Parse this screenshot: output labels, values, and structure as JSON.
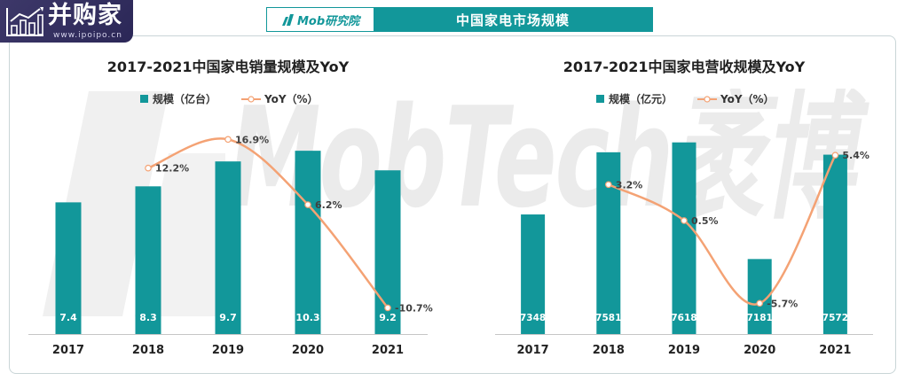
{
  "brand": {
    "name": "并购家",
    "url": "www.ipoipo.cn",
    "icon": "bar-chart-trend-icon"
  },
  "header": {
    "logo_text": "Mob研究院",
    "logo_icon": "mob-logo-icon",
    "title": "中国家电市场规模"
  },
  "watermark": {
    "text": "MobTech袤博"
  },
  "colors": {
    "bar": "#12979a",
    "line": "#f4a274",
    "header": "#12979a",
    "brand_bg": "#35305f"
  },
  "chart_data": [
    {
      "type": "bar",
      "title": "2017-2021中国家电销量规模及YoY",
      "categories": [
        "2017",
        "2018",
        "2019",
        "2020",
        "2021"
      ],
      "series": [
        {
          "name": "规模（亿台）",
          "type": "bar",
          "values": [
            7.4,
            8.3,
            9.7,
            10.3,
            9.2
          ]
        },
        {
          "name": "YoY（%）",
          "type": "line",
          "smooth": true,
          "secondary_axis": true,
          "x": [
            "2018",
            "2019",
            "2020",
            "2021"
          ],
          "values": [
            12.2,
            16.9,
            6.2,
            -10.7
          ],
          "data_labels": [
            "12.2%",
            "16.9%",
            "6.2%",
            "-10.7%"
          ]
        }
      ],
      "ylim": [
        0,
        12
      ],
      "y2lim": [
        -15,
        20
      ],
      "axes_visible": false,
      "grid": false,
      "legend": "top"
    },
    {
      "type": "bar",
      "title": "2017-2021中国家电营收规模及YoY",
      "categories": [
        "2017",
        "2018",
        "2019",
        "2020",
        "2021"
      ],
      "series": [
        {
          "name": "规模（亿元）",
          "type": "bar",
          "values": [
            7348,
            7581,
            7618,
            7181,
            7572
          ]
        },
        {
          "name": "YoY（%）",
          "type": "line",
          "smooth": true,
          "secondary_axis": true,
          "x": [
            "2018",
            "2019",
            "2020",
            "2021"
          ],
          "values": [
            3.2,
            0.5,
            -5.7,
            5.4
          ],
          "data_labels": [
            "3.2%",
            "0.5%",
            "-5.7%",
            "5.4%"
          ]
        }
      ],
      "ylim": [
        6900,
        7700
      ],
      "y2lim": [
        -8,
        8
      ],
      "axes_visible": false,
      "grid": false,
      "legend": "top"
    }
  ]
}
